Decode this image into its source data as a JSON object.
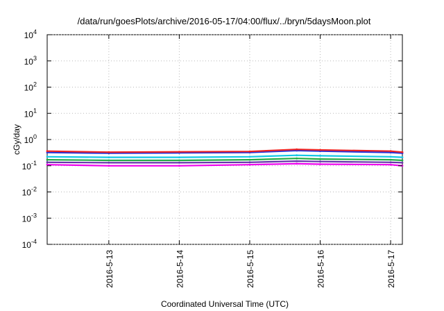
{
  "chart_data": {
    "type": "line",
    "title": "/data/run/goesPlots/archive/2016-05-17/04:00/flux/../bryn/5daysMoon.plot",
    "xlabel": "Coordinated Universal Time (UTC)",
    "ylabel": "cGy/day",
    "yscale": "log",
    "ylim": [
      0.0001,
      10000
    ],
    "y_ticks": [
      {
        "base": "10",
        "exp": "4",
        "value": 10000
      },
      {
        "base": "10",
        "exp": "3",
        "value": 1000
      },
      {
        "base": "10",
        "exp": "2",
        "value": 100
      },
      {
        "base": "10",
        "exp": "1",
        "value": 10
      },
      {
        "base": "10",
        "exp": "0",
        "value": 1
      },
      {
        "base": "10",
        "exp": "-1",
        "value": 0.1
      },
      {
        "base": "10",
        "exp": "-2",
        "value": 0.01
      },
      {
        "base": "10",
        "exp": "-3",
        "value": 0.001
      },
      {
        "base": "10",
        "exp": "-4",
        "value": 0.0001
      }
    ],
    "xlim": [
      "2016-05-12 03:00",
      "2016-05-17 04:00"
    ],
    "x_ticks": [
      {
        "label": "2016-5-13",
        "value": "2016-05-13 00:00"
      },
      {
        "label": "2016-5-14",
        "value": "2016-05-14 00:00"
      },
      {
        "label": "2016-5-15",
        "value": "2016-05-15 00:00"
      },
      {
        "label": "2016-5-16",
        "value": "2016-05-16 00:00"
      },
      {
        "label": "2016-5-17",
        "value": "2016-05-17 00:00"
      }
    ],
    "grid": true,
    "series": [
      {
        "color": "#ee2222",
        "x": [
          "2016-05-12 03:00",
          "2016-05-13 00:00",
          "2016-05-14 00:00",
          "2016-05-15 00:00",
          "2016-05-15 16:00",
          "2016-05-16 00:00",
          "2016-05-17 00:00",
          "2016-05-17 04:00"
        ],
        "values": [
          0.36,
          0.33,
          0.34,
          0.35,
          0.42,
          0.4,
          0.36,
          0.33
        ]
      },
      {
        "color": "#2233dd",
        "x": [
          "2016-05-12 03:00",
          "2016-05-13 00:00",
          "2016-05-14 00:00",
          "2016-05-15 00:00",
          "2016-05-15 16:00",
          "2016-05-16 00:00",
          "2016-05-17 00:00",
          "2016-05-17 04:00"
        ],
        "values": [
          0.32,
          0.3,
          0.31,
          0.32,
          0.38,
          0.36,
          0.32,
          0.3
        ]
      },
      {
        "color": "#11c7e6",
        "x": [
          "2016-05-12 03:00",
          "2016-05-13 00:00",
          "2016-05-14 00:00",
          "2016-05-15 00:00",
          "2016-05-15 16:00",
          "2016-05-16 00:00",
          "2016-05-17 00:00",
          "2016-05-17 04:00"
        ],
        "values": [
          0.22,
          0.21,
          0.21,
          0.22,
          0.25,
          0.24,
          0.22,
          0.21
        ]
      },
      {
        "color": "#22aa44",
        "x": [
          "2016-05-12 03:00",
          "2016-05-13 00:00",
          "2016-05-14 00:00",
          "2016-05-15 00:00",
          "2016-05-15 16:00",
          "2016-05-16 00:00",
          "2016-05-17 00:00",
          "2016-05-17 04:00"
        ],
        "values": [
          0.17,
          0.16,
          0.16,
          0.17,
          0.19,
          0.18,
          0.17,
          0.16
        ]
      },
      {
        "color": "#6633aa",
        "x": [
          "2016-05-12 03:00",
          "2016-05-13 00:00",
          "2016-05-14 00:00",
          "2016-05-15 00:00",
          "2016-05-15 16:00",
          "2016-05-16 00:00",
          "2016-05-17 00:00",
          "2016-05-17 04:00"
        ],
        "values": [
          0.135,
          0.13,
          0.13,
          0.135,
          0.15,
          0.145,
          0.135,
          0.13
        ]
      },
      {
        "color": "#ee00ee",
        "x": [
          "2016-05-12 03:00",
          "2016-05-13 00:00",
          "2016-05-14 00:00",
          "2016-05-15 00:00",
          "2016-05-15 16:00",
          "2016-05-16 00:00",
          "2016-05-17 00:00",
          "2016-05-17 04:00"
        ],
        "values": [
          0.11,
          0.1,
          0.1,
          0.11,
          0.12,
          0.115,
          0.11,
          0.1
        ]
      }
    ]
  }
}
